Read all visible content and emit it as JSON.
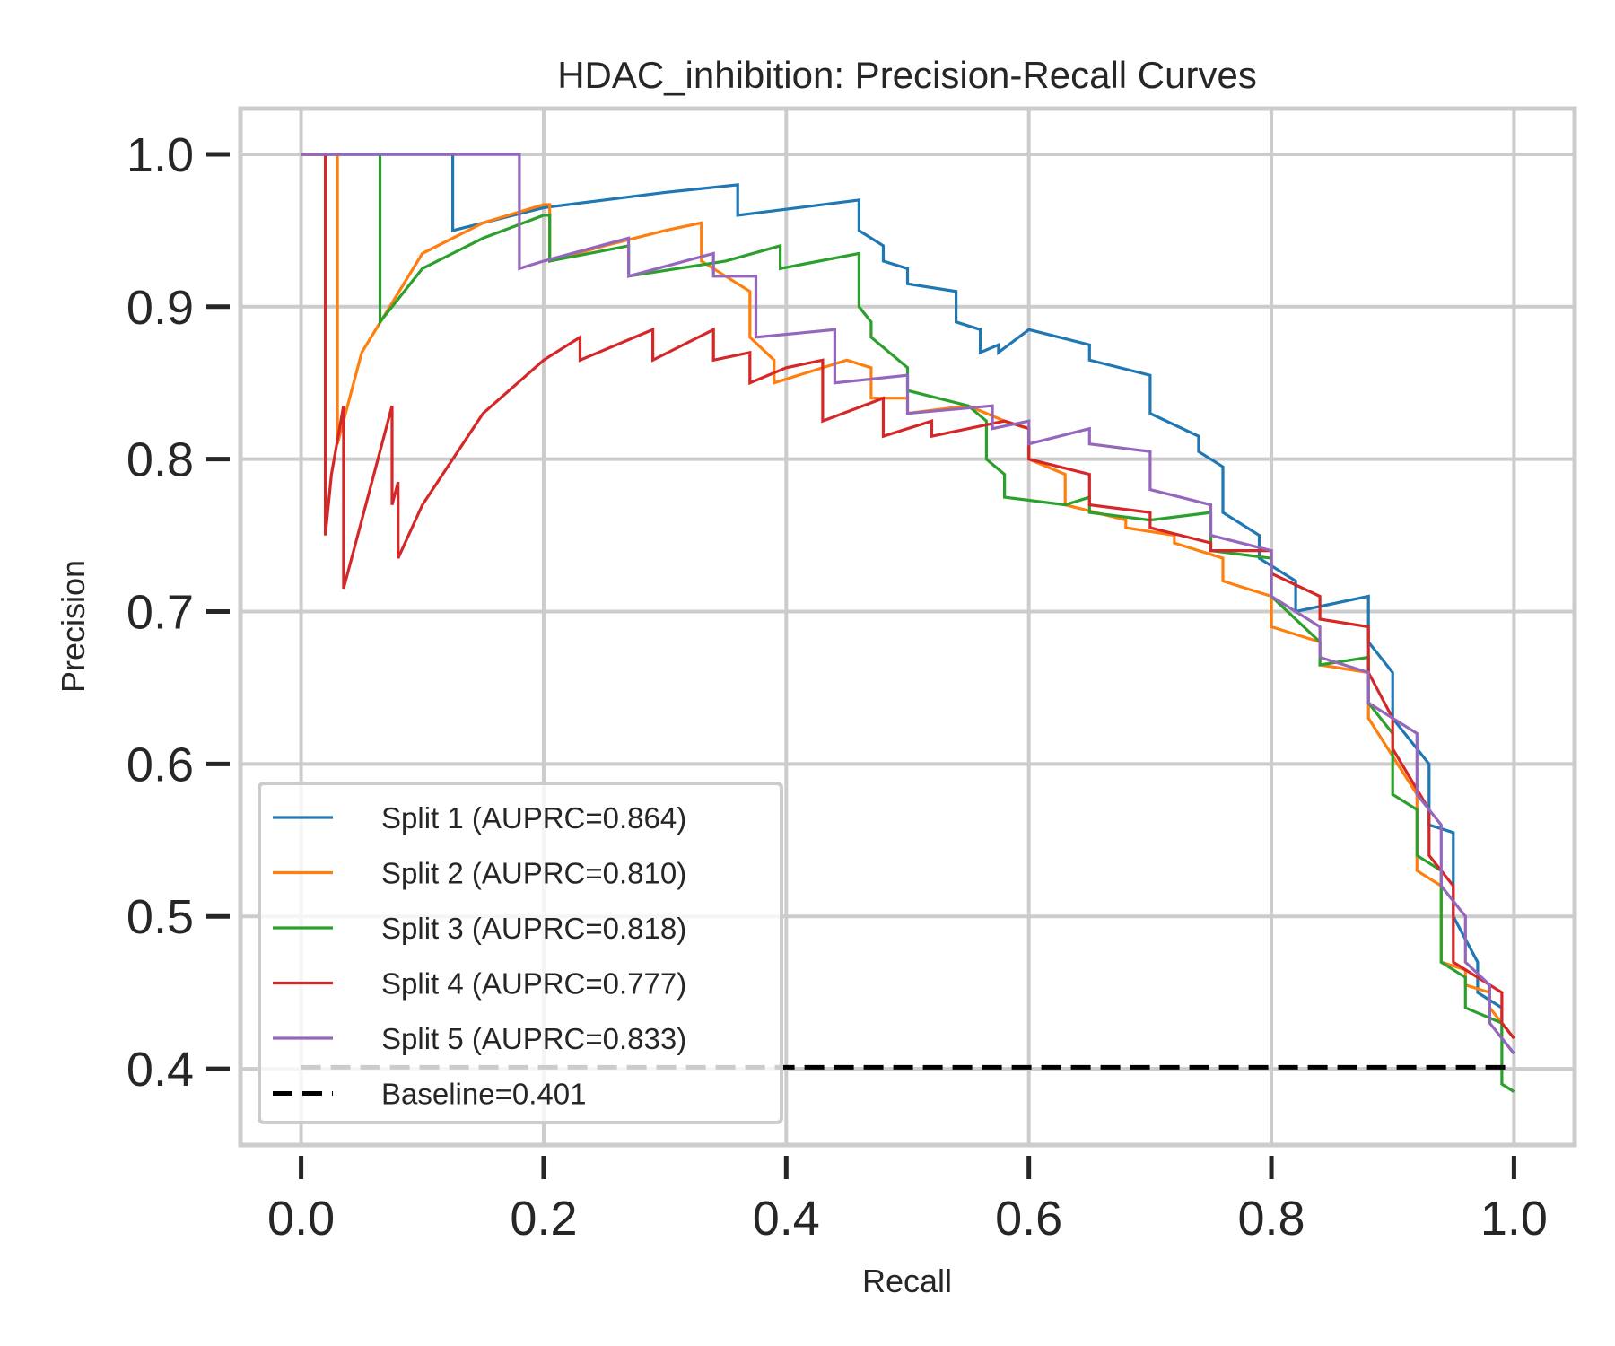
{
  "chart_data": {
    "type": "line",
    "title": "HDAC_inhibition: Precision-Recall Curves",
    "xlabel": "Recall",
    "ylabel": "Precision",
    "xlim": [
      -0.05,
      1.05
    ],
    "ylim": [
      0.35,
      1.03
    ],
    "grid": true,
    "legend_position": "lower-left",
    "x_ticks": [
      "0.0",
      "0.2",
      "0.4",
      "0.6",
      "0.8",
      "1.0"
    ],
    "y_ticks": [
      "0.4",
      "0.5",
      "0.6",
      "0.7",
      "0.8",
      "0.9",
      "1.0"
    ],
    "series": [
      {
        "name": "Split 1 (AUPRC=0.864)",
        "color": "#1f77b4",
        "x": [
          0.0,
          0.125,
          0.125,
          0.2,
          0.3,
          0.36,
          0.36,
          0.41,
          0.46,
          0.46,
          0.48,
          0.48,
          0.5,
          0.5,
          0.54,
          0.54,
          0.56,
          0.56,
          0.575,
          0.575,
          0.6,
          0.65,
          0.65,
          0.7,
          0.7,
          0.74,
          0.74,
          0.76,
          0.76,
          0.79,
          0.79,
          0.82,
          0.82,
          0.85,
          0.88,
          0.88,
          0.9,
          0.9,
          0.93,
          0.93,
          0.95,
          0.95,
          0.97,
          0.97,
          0.99,
          0.99,
          1.0
        ],
        "y": [
          1.0,
          1.0,
          0.95,
          0.965,
          0.975,
          0.98,
          0.96,
          0.965,
          0.97,
          0.95,
          0.94,
          0.93,
          0.925,
          0.915,
          0.91,
          0.89,
          0.885,
          0.87,
          0.875,
          0.87,
          0.885,
          0.875,
          0.865,
          0.855,
          0.83,
          0.815,
          0.805,
          0.795,
          0.765,
          0.75,
          0.735,
          0.72,
          0.7,
          0.705,
          0.71,
          0.68,
          0.66,
          0.63,
          0.6,
          0.56,
          0.555,
          0.5,
          0.47,
          0.45,
          0.44,
          0.42,
          0.41
        ]
      },
      {
        "name": "Split 2 (AUPRC=0.810)",
        "color": "#ff7f0e",
        "x": [
          0.0,
          0.03,
          0.03,
          0.05,
          0.1,
          0.15,
          0.2,
          0.205,
          0.205,
          0.25,
          0.3,
          0.33,
          0.33,
          0.35,
          0.37,
          0.37,
          0.39,
          0.39,
          0.45,
          0.47,
          0.47,
          0.5,
          0.5,
          0.55,
          0.58,
          0.6,
          0.6,
          0.63,
          0.63,
          0.68,
          0.68,
          0.72,
          0.72,
          0.76,
          0.76,
          0.8,
          0.8,
          0.84,
          0.84,
          0.88,
          0.88,
          0.92,
          0.92,
          0.94,
          0.94,
          0.96,
          0.96,
          0.98,
          0.98,
          1.0
        ],
        "y": [
          1.0,
          1.0,
          0.81,
          0.87,
          0.935,
          0.955,
          0.967,
          0.967,
          0.93,
          0.94,
          0.95,
          0.955,
          0.93,
          0.92,
          0.91,
          0.88,
          0.865,
          0.85,
          0.865,
          0.86,
          0.84,
          0.84,
          0.83,
          0.835,
          0.825,
          0.82,
          0.8,
          0.79,
          0.77,
          0.76,
          0.755,
          0.75,
          0.745,
          0.735,
          0.72,
          0.71,
          0.69,
          0.68,
          0.665,
          0.66,
          0.63,
          0.58,
          0.53,
          0.52,
          0.47,
          0.465,
          0.455,
          0.45,
          0.44,
          0.42
        ]
      },
      {
        "name": "Split 3 (AUPRC=0.818)",
        "color": "#2ca02c",
        "x": [
          0.0,
          0.065,
          0.065,
          0.1,
          0.15,
          0.2,
          0.205,
          0.205,
          0.27,
          0.27,
          0.35,
          0.395,
          0.395,
          0.46,
          0.46,
          0.47,
          0.47,
          0.5,
          0.5,
          0.55,
          0.565,
          0.565,
          0.58,
          0.58,
          0.63,
          0.65,
          0.65,
          0.7,
          0.75,
          0.75,
          0.8,
          0.8,
          0.84,
          0.84,
          0.88,
          0.88,
          0.9,
          0.9,
          0.92,
          0.92,
          0.94,
          0.94,
          0.96,
          0.96,
          0.99,
          0.99,
          1.0
        ],
        "y": [
          1.0,
          1.0,
          0.89,
          0.925,
          0.945,
          0.96,
          0.96,
          0.93,
          0.94,
          0.92,
          0.93,
          0.94,
          0.925,
          0.935,
          0.9,
          0.89,
          0.88,
          0.86,
          0.845,
          0.835,
          0.825,
          0.8,
          0.79,
          0.775,
          0.77,
          0.775,
          0.765,
          0.76,
          0.765,
          0.74,
          0.735,
          0.71,
          0.68,
          0.665,
          0.67,
          0.64,
          0.62,
          0.58,
          0.57,
          0.54,
          0.53,
          0.47,
          0.46,
          0.44,
          0.43,
          0.39,
          0.385
        ]
      },
      {
        "name": "Split 4 (AUPRC=0.777)",
        "color": "#d62728",
        "x": [
          0.0,
          0.02,
          0.02,
          0.025,
          0.035,
          0.035,
          0.05,
          0.075,
          0.075,
          0.08,
          0.08,
          0.1,
          0.15,
          0.2,
          0.23,
          0.23,
          0.29,
          0.29,
          0.34,
          0.34,
          0.37,
          0.37,
          0.4,
          0.43,
          0.43,
          0.48,
          0.48,
          0.52,
          0.52,
          0.58,
          0.6,
          0.6,
          0.65,
          0.65,
          0.7,
          0.7,
          0.75,
          0.75,
          0.8,
          0.8,
          0.84,
          0.84,
          0.88,
          0.88,
          0.9,
          0.9,
          0.93,
          0.93,
          0.95,
          0.95,
          0.99,
          0.99,
          1.0
        ],
        "y": [
          1.0,
          1.0,
          0.75,
          0.79,
          0.835,
          0.715,
          0.76,
          0.835,
          0.77,
          0.785,
          0.735,
          0.77,
          0.83,
          0.865,
          0.88,
          0.865,
          0.885,
          0.865,
          0.885,
          0.865,
          0.87,
          0.85,
          0.86,
          0.865,
          0.825,
          0.84,
          0.815,
          0.825,
          0.815,
          0.825,
          0.82,
          0.8,
          0.79,
          0.77,
          0.765,
          0.755,
          0.745,
          0.74,
          0.74,
          0.725,
          0.71,
          0.695,
          0.69,
          0.66,
          0.63,
          0.61,
          0.57,
          0.54,
          0.52,
          0.47,
          0.45,
          0.43,
          0.42
        ]
      },
      {
        "name": "Split 5 (AUPRC=0.833)",
        "color": "#9467bd",
        "x": [
          0.0,
          0.18,
          0.18,
          0.2,
          0.27,
          0.27,
          0.34,
          0.34,
          0.375,
          0.375,
          0.44,
          0.44,
          0.5,
          0.5,
          0.57,
          0.57,
          0.6,
          0.6,
          0.65,
          0.65,
          0.7,
          0.7,
          0.75,
          0.75,
          0.8,
          0.8,
          0.84,
          0.84,
          0.88,
          0.88,
          0.92,
          0.92,
          0.94,
          0.94,
          0.96,
          0.96,
          0.98,
          0.98,
          1.0
        ],
        "y": [
          1.0,
          1.0,
          0.925,
          0.93,
          0.945,
          0.92,
          0.935,
          0.92,
          0.92,
          0.88,
          0.885,
          0.85,
          0.855,
          0.83,
          0.835,
          0.82,
          0.825,
          0.81,
          0.82,
          0.81,
          0.805,
          0.78,
          0.77,
          0.75,
          0.74,
          0.71,
          0.69,
          0.67,
          0.66,
          0.64,
          0.62,
          0.58,
          0.56,
          0.52,
          0.5,
          0.47,
          0.455,
          0.43,
          0.41
        ]
      },
      {
        "name": "Baseline=0.401",
        "color": "#000000",
        "dashed": true,
        "x": [
          0.0,
          1.0
        ],
        "y": [
          0.401,
          0.401
        ]
      }
    ]
  }
}
